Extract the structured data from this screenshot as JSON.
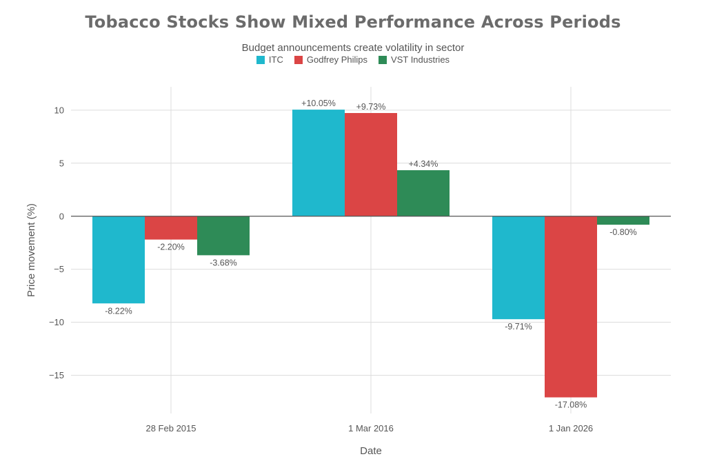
{
  "chart_data": {
    "type": "bar",
    "title": "Tobacco Stocks Show Mixed Performance Across Periods",
    "subtitle": "Budget announcements create volatility in sector",
    "xlabel": "Date",
    "ylabel": "Price movement (%)",
    "categories": [
      "28 Feb 2015",
      "1 Mar 2016",
      "1 Jan 2026"
    ],
    "ylim": [
      -18.6,
      12.2
    ],
    "yticks": [
      10,
      5,
      0,
      -5,
      -10,
      -15
    ],
    "ytick_labels": [
      "10",
      "5",
      "0",
      "−5",
      "−10",
      "−15"
    ],
    "grid": true,
    "legend_position": "top-center",
    "series": [
      {
        "name": "ITC",
        "color": "#1fb8cd",
        "values": [
          -8.22,
          10.05,
          -9.71
        ],
        "labels": [
          "-8.22%",
          "+10.05%",
          "-9.71%"
        ]
      },
      {
        "name": "Godfrey Philips",
        "color": "#db4545",
        "values": [
          -2.2,
          9.73,
          -17.08
        ],
        "labels": [
          "-2.20%",
          "+9.73%",
          "-17.08%"
        ]
      },
      {
        "name": "VST Industries",
        "color": "#2e8b57",
        "values": [
          -3.68,
          4.34,
          -0.8
        ],
        "labels": [
          "-3.68%",
          "+4.34%",
          "-0.80%"
        ]
      }
    ]
  }
}
